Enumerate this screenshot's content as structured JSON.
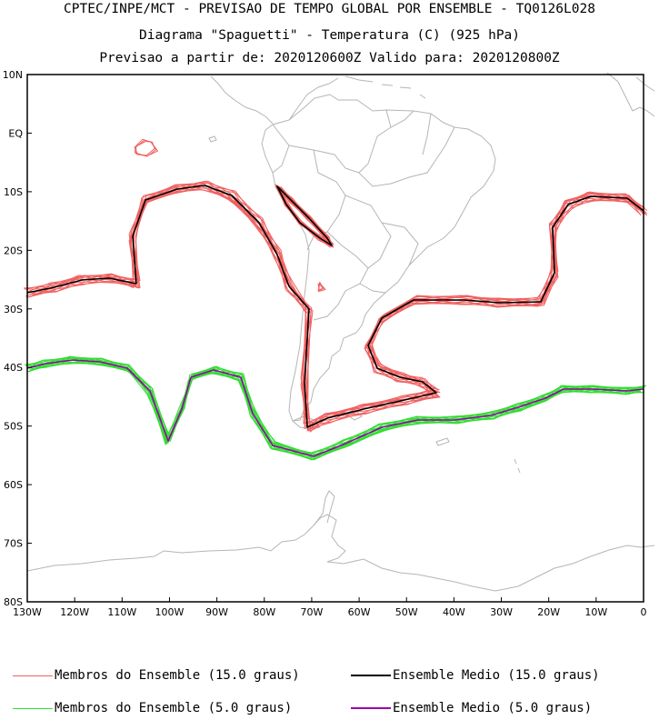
{
  "header": {
    "line1": "CPTEC/INPE/MCT - PREVISAO DE TEMPO GLOBAL POR ENSEMBLE - TQ0126L028",
    "line2": "Diagrama \"Spaguetti\" - Temperatura (C) (925 hPa)",
    "line3": "Previsao a partir de: 2020120600Z  Valido para: 2020120800Z"
  },
  "map": {
    "lat_labels": [
      "10N",
      "EQ",
      "10S",
      "20S",
      "30S",
      "40S",
      "50S",
      "60S",
      "70S",
      "80S"
    ],
    "lon_labels": [
      "130W",
      "120W",
      "110W",
      "100W",
      "90W",
      "80W",
      "70W",
      "60W",
      "50W",
      "40W",
      "30W",
      "20W",
      "10W",
      "0"
    ]
  },
  "legend": {
    "items": [
      {
        "label": "Membros do Ensemble (15.0 graus)",
        "color": "#f06060"
      },
      {
        "label": "Ensemble Medio (15.0 graus)",
        "color": "#000000"
      },
      {
        "label": "Membros do Ensemble (5.0 graus)",
        "color": "#33dd33"
      },
      {
        "label": "Ensemble Medio (5.0 graus)",
        "color": "#9900aa"
      }
    ]
  },
  "colors": {
    "coast": "#b5b5b5",
    "member15": "#f06060",
    "mean15": "#000000",
    "member5": "#33dd33",
    "mean5": "#9900aa"
  }
}
